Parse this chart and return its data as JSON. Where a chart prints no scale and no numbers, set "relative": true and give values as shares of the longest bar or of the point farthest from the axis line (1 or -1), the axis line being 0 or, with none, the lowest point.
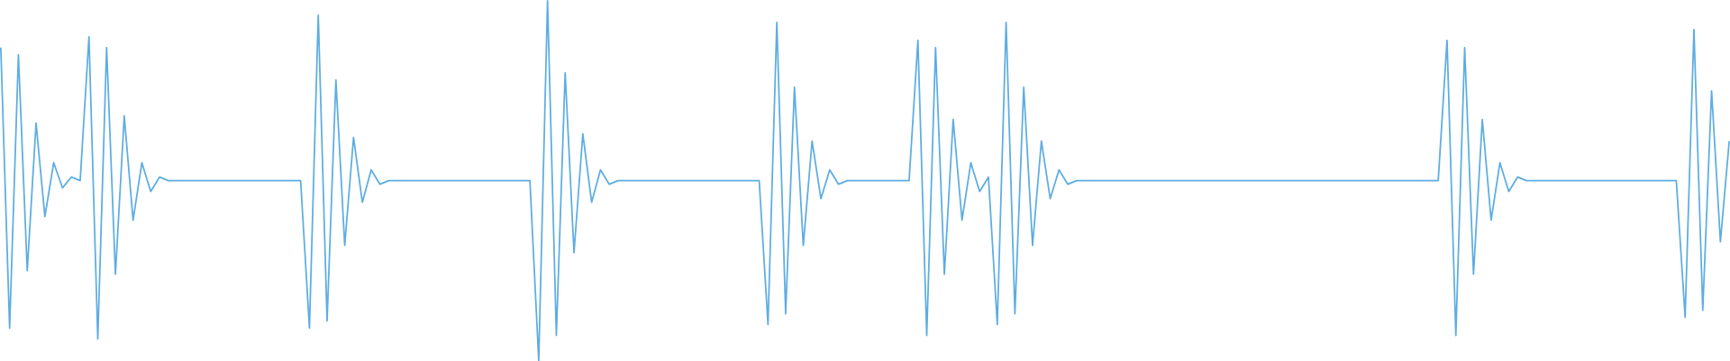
{
  "chart_data": {
    "type": "line",
    "relative": true,
    "color": "#5dade2",
    "categories": [
      null,
      null,
      null,
      null,
      null,
      null,
      null,
      null,
      null,
      null,
      null,
      null,
      null,
      null,
      null,
      null,
      null,
      null,
      null,
      null,
      null,
      null,
      null,
      null,
      null,
      null,
      null,
      null,
      null,
      null,
      null,
      null,
      null,
      null,
      null,
      null,
      null,
      null,
      null,
      null,
      null,
      null,
      null,
      null,
      null,
      null,
      null,
      null,
      null,
      null,
      null,
      null,
      null,
      null,
      null,
      null,
      null,
      null,
      null,
      null,
      null,
      null,
      null,
      null,
      null,
      null,
      null,
      null,
      null,
      null,
      null,
      null,
      null,
      null,
      null,
      null,
      null,
      null,
      null,
      null,
      null,
      null,
      null,
      null,
      null,
      null,
      null,
      null,
      null,
      null,
      null,
      null,
      null,
      null,
      null,
      null,
      null,
      null,
      null,
      null,
      null,
      null,
      null,
      null,
      null,
      null,
      null,
      null,
      null,
      null,
      null,
      null,
      null,
      null,
      null,
      null,
      null,
      null,
      null,
      null,
      null,
      null,
      null,
      null,
      null,
      null,
      null,
      null,
      null,
      null,
      null,
      null,
      null,
      null,
      null,
      null,
      null,
      null,
      null,
      null,
      null,
      null,
      null,
      null,
      null,
      null,
      null,
      null,
      null,
      null,
      null,
      null,
      null,
      null,
      null,
      null,
      null,
      null,
      null,
      null,
      null,
      null,
      null,
      null,
      null,
      null,
      null,
      null,
      null,
      null,
      null,
      null,
      null,
      null,
      null,
      null,
      null,
      null,
      null,
      null,
      null,
      null,
      null,
      null,
      null,
      null,
      null,
      null,
      null,
      null,
      null,
      null,
      null,
      null,
      null,
      null,
      null
    ],
    "values": [
      0.87,
      0.09,
      0.85,
      0.25,
      0.66,
      0.4,
      0.55,
      0.48,
      0.51,
      0.5,
      0.9,
      0.06,
      0.87,
      0.24,
      0.68,
      0.39,
      0.55,
      0.47,
      0.51,
      0.5,
      0.5,
      0.5,
      0.5,
      0.5,
      0.5,
      0.5,
      0.5,
      0.5,
      0.5,
      0.5,
      0.5,
      0.5,
      0.5,
      0.5,
      0.5,
      0.09,
      0.96,
      0.11,
      0.78,
      0.32,
      0.62,
      0.44,
      0.53,
      0.49,
      0.5,
      0.5,
      0.5,
      0.5,
      0.5,
      0.5,
      0.5,
      0.5,
      0.5,
      0.5,
      0.5,
      0.5,
      0.5,
      0.5,
      0.5,
      0.5,
      0.5,
      0,
      1,
      0.07,
      0.8,
      0.3,
      0.63,
      0.44,
      0.53,
      0.49,
      0.5,
      0.5,
      0.5,
      0.5,
      0.5,
      0.5,
      0.5,
      0.5,
      0.5,
      0.5,
      0.5,
      0.5,
      0.5,
      0.5,
      0.5,
      0.5,
      0.5,
      0.1,
      0.94,
      0.13,
      0.76,
      0.32,
      0.61,
      0.45,
      0.53,
      0.49,
      0.5,
      0.5,
      0.5,
      0.5,
      0.5,
      0.5,
      0.5,
      0.5,
      0.89,
      0.07,
      0.87,
      0.24,
      0.67,
      0.39,
      0.55,
      0.47,
      0.51,
      0.1,
      0.94,
      0.13,
      0.76,
      0.32,
      0.61,
      0.45,
      0.53,
      0.49,
      0.5,
      0.5,
      0.5,
      0.5,
      0.5,
      0.5,
      0.5,
      0.5,
      0.5,
      0.5,
      0.5,
      0.5,
      0.5,
      0.5,
      0.5,
      0.5,
      0.5,
      0.5,
      0.5,
      0.5,
      0.5,
      0.5,
      0.5,
      0.5,
      0.5,
      0.5,
      0.5,
      0.5,
      0.5,
      0.5,
      0.5,
      0.5,
      0.5,
      0.5,
      0.5,
      0.5,
      0.5,
      0.5,
      0.5,
      0.5,
      0.5,
      0.5,
      0.89,
      0.07,
      0.87,
      0.24,
      0.67,
      0.39,
      0.55,
      0.47,
      0.51,
      0.5,
      0.5,
      0.5,
      0.5,
      0.5,
      0.5,
      0.5,
      0.5,
      0.5,
      0.5,
      0.5,
      0.5,
      0.5,
      0.5,
      0.5,
      0.5,
      0.5,
      0.5,
      0.12,
      0.92,
      0.14,
      0.75,
      0.33,
      0.61
    ]
  }
}
